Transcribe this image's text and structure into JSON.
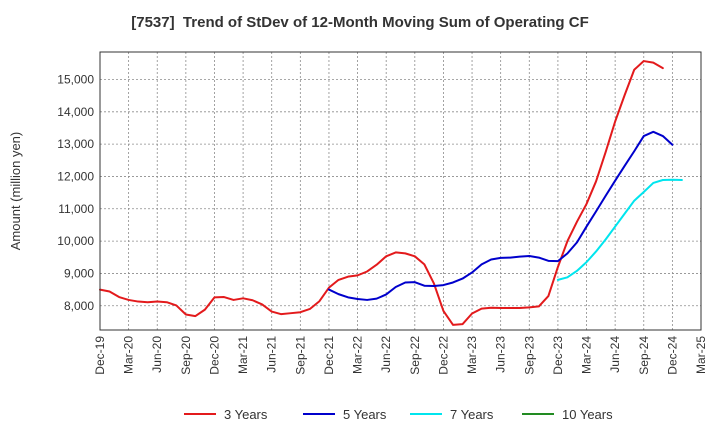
{
  "chart_data": {
    "type": "line",
    "title": "[7537]  Trend of StDev of 12-Month Moving Sum of Operating CF",
    "xlabel": "",
    "ylabel": "Amount (million yen)",
    "x_ticks": [
      "Dec-19",
      "Mar-20",
      "Jun-20",
      "Sep-20",
      "Dec-20",
      "Mar-21",
      "Jun-21",
      "Sep-21",
      "Dec-21",
      "Mar-22",
      "Jun-22",
      "Sep-22",
      "Dec-22",
      "Mar-23",
      "Jun-23",
      "Sep-23",
      "Dec-23",
      "Mar-24",
      "Jun-24",
      "Sep-24",
      "Dec-24",
      "Mar-25"
    ],
    "y_ticks": [
      8000,
      9000,
      10000,
      11000,
      12000,
      13000,
      14000,
      15000
    ],
    "y_tick_labels": [
      "8,000",
      "9,000",
      "10,000",
      "11,000",
      "12,000",
      "13,000",
      "14,000",
      "15,000"
    ],
    "ylim": [
      7250,
      15850
    ],
    "x_range_months": [
      0,
      63
    ],
    "grid": true,
    "legend_position": "bottom",
    "series": [
      {
        "name": "3 Years",
        "color": "#e31a1c",
        "start_month": 0,
        "values": [
          8500,
          8440,
          8270,
          8180,
          8130,
          8110,
          8130,
          8110,
          8010,
          7730,
          7680,
          7880,
          8260,
          8270,
          8180,
          8230,
          8170,
          8040,
          7820,
          7740,
          7770,
          7800,
          7900,
          8140,
          8560,
          8800,
          8900,
          8940,
          9060,
          9270,
          9530,
          9650,
          9620,
          9530,
          9280,
          8690,
          7840,
          7410,
          7430,
          7760,
          7910,
          7940,
          7930,
          7930,
          7930,
          7950,
          7980,
          8300,
          9200,
          10000,
          10600,
          11150,
          11850,
          12750,
          13700,
          14520,
          15300,
          15570,
          15520,
          15350
        ]
      },
      {
        "name": "5 Years",
        "color": "#0000cc",
        "start_month": 24,
        "values": [
          8500,
          8360,
          8260,
          8210,
          8180,
          8220,
          8350,
          8580,
          8720,
          8730,
          8620,
          8610,
          8640,
          8720,
          8840,
          9030,
          9280,
          9430,
          9480,
          9490,
          9520,
          9540,
          9490,
          9390,
          9380,
          9620,
          9960,
          10450,
          10920,
          11400,
          11870,
          12330,
          12780,
          13250,
          13380,
          13250,
          12980
        ]
      },
      {
        "name": "7 Years",
        "color": "#00e5ee",
        "start_month": 48,
        "values": [
          8800,
          8880,
          9080,
          9350,
          9680,
          10050,
          10450,
          10850,
          11250,
          11520,
          11800,
          11890,
          11900,
          11890
        ]
      },
      {
        "name": "10 Years",
        "color": "#228b22",
        "start_month": null,
        "values": []
      }
    ]
  }
}
